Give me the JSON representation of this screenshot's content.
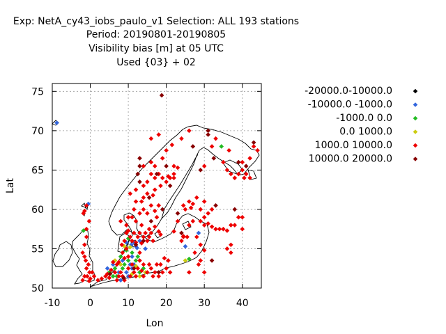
{
  "chart_data": {
    "type": "scatter",
    "title_lines": [
      "Exp: NetA_cy43_iobs_paulo_v1   Selection: ALL     193 stations",
      "Period: 20190801-20190805",
      "Visibility bias [m] at  05 UTC",
      "Used {03} + 02"
    ],
    "xlabel": "Lon",
    "ylabel": "Lat",
    "xlim": [
      -10,
      45
    ],
    "ylim": [
      50,
      76
    ],
    "xticks": [
      -10,
      0,
      10,
      20,
      30,
      40
    ],
    "yticks": [
      50,
      55,
      60,
      65,
      70,
      75
    ],
    "grid": true,
    "legend_position": "right",
    "series": [
      {
        "name": "-20000.0-10000.0",
        "color": "#000000",
        "points": []
      },
      {
        "name": "-10000.0 -1000.0",
        "color": "#3366dd",
        "points": [
          [
            -8.8,
            71.0
          ],
          [
            -0.5,
            60.7
          ],
          [
            25,
            55.3
          ],
          [
            4.5,
            52.5
          ],
          [
            6,
            53
          ],
          [
            7.5,
            52
          ],
          [
            8.5,
            53.5
          ],
          [
            9.5,
            52
          ],
          [
            10.5,
            53
          ],
          [
            11,
            54
          ],
          [
            11.5,
            53
          ],
          [
            12,
            55.3
          ],
          [
            12.3,
            55.1
          ],
          [
            13,
            56
          ],
          [
            14.5,
            55
          ],
          [
            10,
            51.5
          ],
          [
            8,
            51
          ],
          [
            11,
            52.5
          ],
          [
            13,
            52
          ],
          [
            28.5,
            57
          ],
          [
            9.5,
            55.8
          ],
          [
            10.8,
            55.5
          ],
          [
            11.5,
            55.8
          ]
        ]
      },
      {
        "name": "-1000.0 0.0",
        "color": "#22bb22",
        "points": [
          [
            -1.8,
            57.3
          ],
          [
            34.5,
            68
          ],
          [
            26,
            53.7
          ],
          [
            5,
            52
          ],
          [
            6.5,
            52.5
          ],
          [
            7,
            51.5
          ],
          [
            8.5,
            52.5
          ],
          [
            9,
            53
          ],
          [
            10,
            53.5
          ],
          [
            11,
            54.5
          ],
          [
            12,
            53.5
          ],
          [
            13,
            52
          ],
          [
            14,
            52.5
          ],
          [
            8,
            54
          ],
          [
            6,
            51.5
          ],
          [
            10,
            56.3
          ],
          [
            9.5,
            54.8
          ],
          [
            12.5,
            54
          ]
        ]
      },
      {
        "name": "0.0 1000.0",
        "color": "#cccc11",
        "points": [
          [
            25,
            53.5
          ],
          [
            9,
            55.3
          ],
          [
            10.5,
            55.2
          ],
          [
            13,
            51.5
          ],
          [
            8,
            53
          ],
          [
            11,
            51.8
          ],
          [
            14.5,
            52
          ],
          [
            6.5,
            53.5
          ],
          [
            12,
            52.8
          ]
        ]
      },
      {
        "name": "1000.0 10000.0",
        "color": "#ee0000",
        "points": [
          [
            -1,
            60.5
          ],
          [
            -1.5,
            59.8
          ],
          [
            -1.8,
            59.5
          ],
          [
            -0.3,
            58.5
          ],
          [
            -1,
            57.5
          ],
          [
            -1,
            56.5
          ],
          [
            -1.5,
            55.5
          ],
          [
            -2,
            54.5
          ],
          [
            -1.5,
            54
          ],
          [
            -1.2,
            53.5
          ],
          [
            -0.5,
            53
          ],
          [
            -1,
            52.5
          ],
          [
            -0.2,
            52
          ],
          [
            0.5,
            52
          ],
          [
            1,
            51.5
          ],
          [
            -0.8,
            51.5
          ],
          [
            0,
            51.2
          ],
          [
            -1.5,
            51.5
          ],
          [
            -2,
            51
          ],
          [
            -0.3,
            50.9
          ],
          [
            2,
            51
          ],
          [
            3,
            51.2
          ],
          [
            4,
            51.5
          ],
          [
            4.5,
            51.8
          ],
          [
            5,
            51.3
          ],
          [
            5.5,
            52.3
          ],
          [
            6,
            53.3
          ],
          [
            6.5,
            52
          ],
          [
            7,
            51
          ],
          [
            7.5,
            51.5
          ],
          [
            7,
            53
          ],
          [
            7.5,
            53.3
          ],
          [
            8,
            52
          ],
          [
            8.5,
            51.5
          ],
          [
            8.5,
            54.5
          ],
          [
            9,
            51
          ],
          [
            9,
            53.8
          ],
          [
            9.5,
            55
          ],
          [
            10,
            52.5
          ],
          [
            10,
            54
          ],
          [
            10.5,
            51.5
          ],
          [
            11,
            53
          ],
          [
            11.5,
            52
          ],
          [
            12,
            51.5
          ],
          [
            12.5,
            52.5
          ],
          [
            13,
            53.5
          ],
          [
            13.5,
            52.2
          ],
          [
            14,
            51.5
          ],
          [
            14,
            53
          ],
          [
            15,
            52
          ],
          [
            15.5,
            53
          ],
          [
            16,
            52.5
          ],
          [
            16.5,
            51.5
          ],
          [
            17,
            52
          ],
          [
            17.5,
            53
          ],
          [
            18,
            51.5
          ],
          [
            18.5,
            53
          ],
          [
            19,
            52
          ],
          [
            19.5,
            53.8
          ],
          [
            20,
            52.5
          ],
          [
            21,
            52
          ],
          [
            20.5,
            53.5
          ],
          [
            8.3,
            55.5
          ],
          [
            9,
            56
          ],
          [
            9.5,
            57
          ],
          [
            10,
            57.3
          ],
          [
            10.5,
            56.5
          ],
          [
            11,
            56
          ],
          [
            11.5,
            57
          ],
          [
            12,
            55.8
          ],
          [
            12.5,
            56.5
          ],
          [
            13,
            57
          ],
          [
            13.5,
            55.7
          ],
          [
            14,
            56.5
          ],
          [
            14.5,
            57
          ],
          [
            15,
            56
          ],
          [
            15.5,
            57.5
          ],
          [
            16,
            57
          ],
          [
            16.5,
            56
          ],
          [
            17,
            57.8
          ],
          [
            18,
            57.2
          ],
          [
            18.5,
            56.8
          ],
          [
            15.5,
            56.5
          ],
          [
            13.5,
            58
          ],
          [
            9.5,
            58
          ],
          [
            8,
            58.5
          ],
          [
            10,
            59
          ],
          [
            11,
            59
          ],
          [
            12,
            58.5
          ],
          [
            11.5,
            60
          ],
          [
            12,
            61
          ],
          [
            13,
            59.5
          ],
          [
            14,
            60
          ],
          [
            15,
            59.5
          ],
          [
            16,
            60.5
          ],
          [
            17,
            59.8
          ],
          [
            17.5,
            59
          ],
          [
            18,
            60.5
          ],
          [
            14,
            61.5
          ],
          [
            15,
            62
          ],
          [
            17,
            62.5
          ],
          [
            10.5,
            62
          ],
          [
            14,
            63
          ],
          [
            15,
            63.5
          ],
          [
            16,
            64.5
          ],
          [
            17,
            64
          ],
          [
            18,
            64.5
          ],
          [
            19,
            64
          ],
          [
            20,
            63.5
          ],
          [
            21,
            64
          ],
          [
            22,
            65.5
          ],
          [
            23,
            65.3
          ],
          [
            22,
            64.5
          ],
          [
            14,
            65.5
          ],
          [
            16,
            66
          ],
          [
            17,
            65.5
          ],
          [
            19,
            66.5
          ],
          [
            20,
            67.5
          ],
          [
            21.5,
            68.2
          ],
          [
            16,
            69
          ],
          [
            18,
            69.5
          ],
          [
            24,
            69
          ],
          [
            26,
            70
          ],
          [
            12,
            62.5
          ],
          [
            13.5,
            61
          ],
          [
            16.5,
            61.8
          ],
          [
            18.5,
            63
          ],
          [
            22,
            64
          ],
          [
            20.5,
            64.2
          ],
          [
            24.5,
            60.5
          ],
          [
            25,
            60
          ],
          [
            26,
            61
          ],
          [
            26.5,
            60.2
          ],
          [
            27,
            60.7
          ],
          [
            28,
            61.5
          ],
          [
            29,
            60
          ],
          [
            30,
            61
          ],
          [
            31,
            59.5
          ],
          [
            32,
            60
          ],
          [
            30,
            59
          ],
          [
            29,
            58.5
          ],
          [
            30,
            58
          ],
          [
            31,
            58.2
          ],
          [
            32,
            57.8
          ],
          [
            33,
            57.5
          ],
          [
            34,
            57.5
          ],
          [
            35,
            57.5
          ],
          [
            36,
            57.3
          ],
          [
            37,
            58
          ],
          [
            38,
            58
          ],
          [
            39,
            59
          ],
          [
            40,
            59
          ],
          [
            40,
            57.5
          ],
          [
            37,
            55.5
          ],
          [
            36,
            55
          ],
          [
            37,
            54.5
          ],
          [
            28,
            56.5
          ],
          [
            29,
            55.5
          ],
          [
            30,
            54.8
          ],
          [
            27.5,
            54.5
          ],
          [
            28.5,
            53
          ],
          [
            26,
            52
          ],
          [
            29,
            53.5
          ],
          [
            30,
            52
          ],
          [
            24,
            56
          ],
          [
            24.5,
            56.6
          ],
          [
            25.5,
            56.5
          ],
          [
            26,
            58
          ],
          [
            27,
            58.5
          ],
          [
            23,
            58.5
          ],
          [
            22,
            57.2
          ],
          [
            30,
            65.5
          ],
          [
            32,
            68
          ],
          [
            33,
            69
          ],
          [
            35,
            66
          ],
          [
            36,
            65
          ],
          [
            37,
            64.5
          ],
          [
            38,
            64
          ],
          [
            39,
            64.5
          ],
          [
            40,
            65
          ],
          [
            41,
            64.5
          ],
          [
            42,
            64
          ],
          [
            43,
            68
          ],
          [
            44,
            67.5
          ],
          [
            42,
            66.5
          ],
          [
            40,
            66
          ],
          [
            40.5,
            64
          ],
          [
            36.5,
            67.5
          ],
          [
            24.5,
            56.5
          ],
          [
            13,
            54.5
          ]
        ]
      },
      {
        "name": "10000.0 20000.0",
        "color": "#880000",
        "points": [
          [
            18.8,
            74.5
          ],
          [
            31,
            70
          ],
          [
            27,
            68
          ],
          [
            29,
            65
          ],
          [
            31,
            69.5
          ],
          [
            32.5,
            66.5
          ],
          [
            39,
            66
          ],
          [
            41,
            65.5
          ],
          [
            43,
            68.5
          ],
          [
            13,
            66.5
          ],
          [
            13,
            65.5
          ],
          [
            12.5,
            64.5
          ],
          [
            13,
            63.5
          ],
          [
            20,
            65.5
          ],
          [
            17.5,
            64.5
          ],
          [
            15.5,
            61.5
          ],
          [
            16,
            58.5
          ],
          [
            33,
            60.5
          ],
          [
            38,
            60
          ],
          [
            24,
            57
          ],
          [
            18,
            52
          ],
          [
            12,
            55.5
          ],
          [
            5.2,
            51.8
          ],
          [
            32,
            53.5
          ],
          [
            11.5,
            52.5
          ],
          [
            8.8,
            51.3
          ],
          [
            14,
            56
          ],
          [
            23,
            59.5
          ],
          [
            21,
            63
          ],
          [
            19,
            60
          ]
        ]
      }
    ]
  }
}
